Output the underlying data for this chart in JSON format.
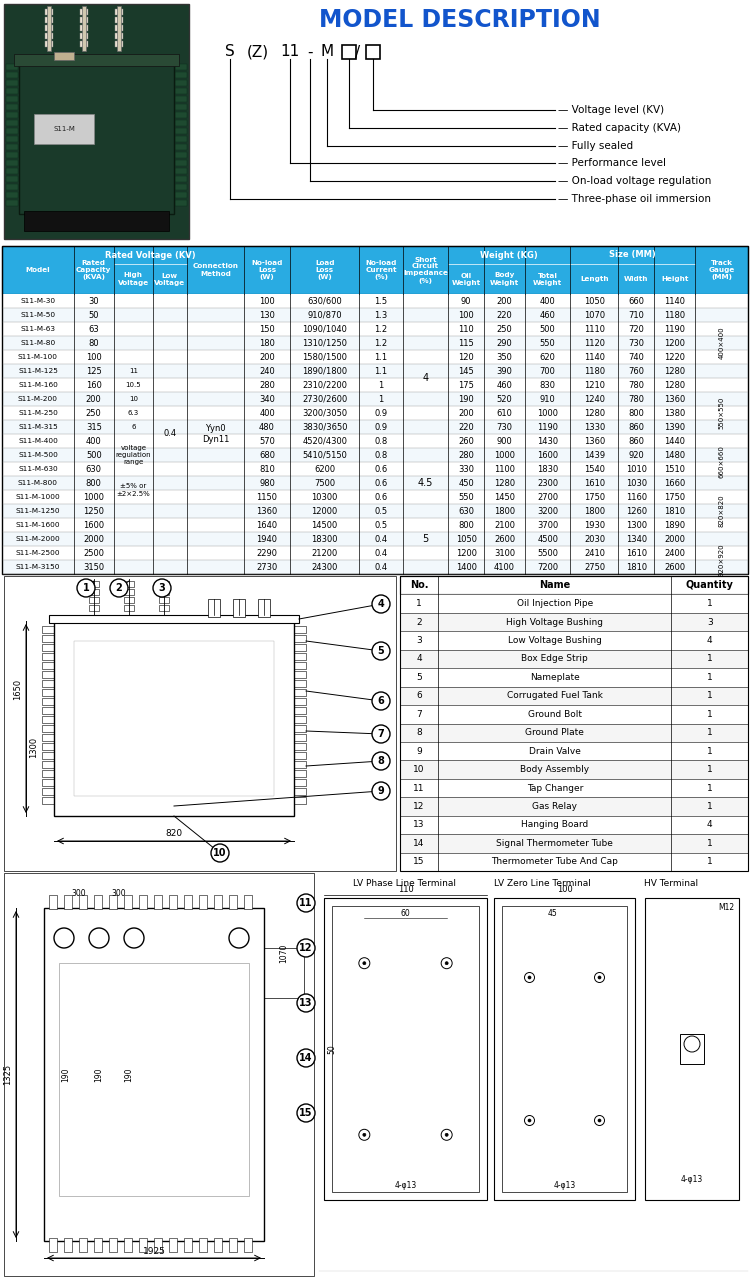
{
  "title": "MODEL DESCRIPTION",
  "model_parts": [
    "S",
    "(Z)",
    "11",
    "-",
    "M",
    "□",
    "/",
    "□"
  ],
  "labels": [
    "Voltage level (KV)",
    "Rated capacity (KVA)",
    "Fully sealed",
    "Performance level",
    "On-load voltage regulation",
    "Three-phase oil immersion"
  ],
  "header_bg": "#29ABE2",
  "rows": [
    [
      "S11-M-30",
      30,
      100,
      "630/600",
      1.5,
      90,
      200,
      400,
      1050,
      660,
      1140,
      ""
    ],
    [
      "S11-M-50",
      50,
      130,
      "910/870",
      1.3,
      100,
      220,
      460,
      1070,
      710,
      1180,
      ""
    ],
    [
      "S11-M-63",
      63,
      150,
      "1090/1040",
      1.2,
      110,
      250,
      500,
      1110,
      720,
      1190,
      "400×400"
    ],
    [
      "S11-M-80",
      80,
      180,
      "1310/1250",
      1.2,
      115,
      290,
      550,
      1120,
      730,
      1200,
      ""
    ],
    [
      "S11-M-100",
      100,
      200,
      "1580/1500",
      1.1,
      120,
      350,
      620,
      1140,
      740,
      1220,
      ""
    ],
    [
      "S11-M-125",
      125,
      240,
      "1890/1800",
      1.1,
      145,
      390,
      700,
      1180,
      760,
      1280,
      ""
    ],
    [
      "S11-M-160",
      160,
      280,
      "2310/2200",
      1,
      175,
      460,
      830,
      1210,
      780,
      1280,
      ""
    ],
    [
      "S11-M-200",
      200,
      340,
      "2730/2600",
      1,
      190,
      520,
      910,
      1240,
      780,
      1360,
      "550×550"
    ],
    [
      "S11-M-250",
      250,
      400,
      "3200/3050",
      0.9,
      200,
      610,
      1000,
      1280,
      800,
      1380,
      ""
    ],
    [
      "S11-M-315",
      315,
      480,
      "3830/3650",
      0.9,
      220,
      730,
      1190,
      1330,
      860,
      1390,
      ""
    ],
    [
      "S11-M-400",
      400,
      570,
      "4520/4300",
      0.8,
      260,
      900,
      1430,
      1360,
      860,
      1440,
      ""
    ],
    [
      "S11-M-500",
      500,
      680,
      "5410/5150",
      0.8,
      280,
      1000,
      1600,
      1439,
      920,
      1480,
      "660×660"
    ],
    [
      "S11-M-630",
      630,
      810,
      "6200",
      0.6,
      330,
      1100,
      1830,
      1540,
      1010,
      1510,
      ""
    ],
    [
      "S11-M-800",
      800,
      980,
      "7500",
      0.6,
      450,
      1280,
      2300,
      1610,
      1030,
      1660,
      ""
    ],
    [
      "S11-M-1000",
      1000,
      1150,
      "10300",
      0.6,
      550,
      1450,
      2700,
      1750,
      1160,
      1750,
      "820×820"
    ],
    [
      "S11-M-1250",
      1250,
      1360,
      "12000",
      0.5,
      630,
      1800,
      3200,
      1800,
      1260,
      1810,
      ""
    ],
    [
      "S11-M-1600",
      1600,
      1640,
      "14500",
      0.5,
      800,
      2100,
      3700,
      1930,
      1300,
      1890,
      ""
    ],
    [
      "S11-M-2000",
      2000,
      1940,
      "18300",
      0.4,
      1050,
      2600,
      4500,
      2030,
      1340,
      2000,
      ""
    ],
    [
      "S11-M-2500",
      2500,
      2290,
      "21200",
      0.4,
      1200,
      3100,
      5500,
      2410,
      1610,
      2400,
      "920×920"
    ],
    [
      "S11-M-3150",
      3150,
      2730,
      "24300",
      0.4,
      1400,
      4100,
      7200,
      2750,
      1810,
      2600,
      ""
    ]
  ],
  "hv_groups": [
    [
      0,
      4,
      ""
    ],
    [
      5,
      5,
      "11"
    ],
    [
      6,
      6,
      "10.5"
    ],
    [
      7,
      7,
      "10"
    ],
    [
      8,
      8,
      "6.3"
    ],
    [
      9,
      9,
      "6"
    ],
    [
      10,
      12,
      "voltage\nregulation\nrange"
    ],
    [
      13,
      14,
      "±5% or\n±2×2.5%"
    ],
    [
      15,
      19,
      ""
    ]
  ],
  "sci_groups": [
    [
      0,
      11,
      "4"
    ],
    [
      12,
      14,
      "4.5"
    ],
    [
      15,
      19,
      "5"
    ]
  ],
  "tg_groups": [
    [
      2,
      4,
      "400×400"
    ],
    [
      7,
      9,
      "550×550"
    ],
    [
      11,
      12,
      "660×660"
    ],
    [
      14,
      16,
      "820×820"
    ],
    [
      18,
      19,
      "920×920"
    ]
  ],
  "parts_list": [
    [
      1,
      "Oil Injection Pipe",
      1
    ],
    [
      2,
      "High Voltage Bushing",
      3
    ],
    [
      3,
      "Low Voltage Bushing",
      4
    ],
    [
      4,
      "Box Edge Strip",
      1
    ],
    [
      5,
      "Nameplate",
      1
    ],
    [
      6,
      "Corrugated Fuel Tank",
      1
    ],
    [
      7,
      "Ground Bolt",
      1
    ],
    [
      8,
      "Ground Plate",
      1
    ],
    [
      9,
      "Drain Valve",
      1
    ],
    [
      10,
      "Body Assembly",
      1
    ],
    [
      11,
      "Tap Changer",
      1
    ],
    [
      12,
      "Gas Relay",
      1
    ],
    [
      13,
      "Hanging Board",
      4
    ],
    [
      14,
      "Signal Thermometer Tube",
      1
    ],
    [
      15,
      "Thermometer Tube And Cap",
      1
    ]
  ]
}
